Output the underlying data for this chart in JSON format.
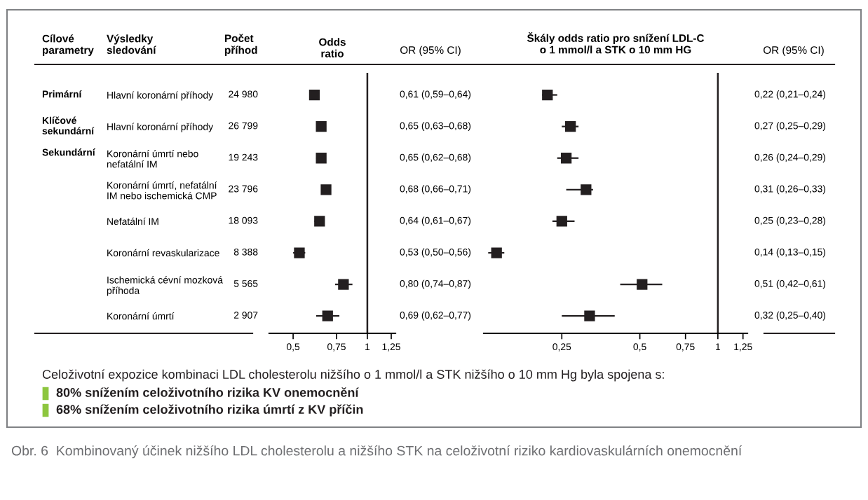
{
  "chart_data": [
    {
      "type": "scatter",
      "orientation": "horizontal",
      "title": "Odds\nratio",
      "log": "x",
      "marker": "square",
      "grid": false,
      "categories": [
        "Hlavní koronární příhody",
        "Hlavní koronární příhody",
        "Koronární úmrtí nebo\nnefatální IM",
        "Koronární úmrtí, nefatální\nIM nebo ischemická CMP",
        "Nefatální IM",
        "Koronární revaskularizace",
        "Ischemická cévní mozková\npříhoda",
        "Koronární úmrtí"
      ],
      "series": [
        {
          "color": "#231f20",
          "values": [
            0.61,
            0.65,
            0.65,
            0.68,
            0.64,
            0.53,
            0.8,
            0.69
          ],
          "errors": [
            [
              0.59,
              0.64
            ],
            [
              0.63,
              0.68
            ],
            [
              0.62,
              0.68
            ],
            [
              0.66,
              0.71
            ],
            [
              0.61,
              0.67
            ],
            [
              0.5,
              0.56
            ],
            [
              0.74,
              0.87
            ],
            [
              0.62,
              0.77
            ]
          ],
          "value_labels": [
            "0,61 (0,59–0,64)",
            "0,65 (0,63–0,68)",
            "0,65 (0,62–0,68)",
            "0,68 (0,66–0,71)",
            "0,64 (0,61–0,67)",
            "0,53 (0,50–0,56)",
            "0,80 (0,74–0,87)",
            "0,69 (0,62–0,77)"
          ]
        }
      ],
      "xlim": [
        0.4,
        1.3
      ],
      "xticks": [
        {
          "value": 0.5,
          "label": "0,5"
        },
        {
          "value": 0.75,
          "label": "0,75"
        },
        1,
        {
          "value": 1.25,
          "label": "1,25"
        }
      ],
      "ref_lines": [
        {
          "axis": "x",
          "value": 1,
          "color": "#231f20"
        }
      ],
      "annotations": [
        "Cílové\nparametry",
        "Výsledky\nsledování",
        "Počet\npříhod",
        "OR (95% CI)",
        "24 980",
        "26 799",
        "19 243",
        "23 796",
        "18 093",
        "8 388",
        "5 565",
        "2 907",
        "Primární",
        "Klíčové\nsekundární",
        "Sekundární",
        "Celoživotní expozice kombinaci LDL cholesterolu nižšího o 1 mmol/l a STK nižšího o 10 mm Hg byla spojena s:",
        "80% snížením celoživotního rizika KV onemocnění",
        "68% snížením celoživotního rizika úmrtí z KV příčin",
        "Obr. 6  Kombinovaný účinek nižšího LDL cholesterolu a nižšího STK na celoživotní riziko kardiovaskulárních onemocnění"
      ]
    },
    {
      "type": "scatter",
      "orientation": "horizontal",
      "title": "Škály odds ratio pro snížení LDL-C\no 1 mmol/l a STK o 10 mm HG",
      "log": "x",
      "marker": "square",
      "grid": false,
      "tick_labels": "x",
      "categories": [
        null,
        null,
        null,
        null,
        null,
        null,
        null,
        null
      ],
      "series": [
        {
          "color": "#231f20",
          "values": [
            0.22,
            0.27,
            0.26,
            0.31,
            0.25,
            0.14,
            0.51,
            0.32
          ],
          "errors": [
            [
              0.21,
              0.24
            ],
            [
              0.25,
              0.29
            ],
            [
              0.24,
              0.29
            ],
            [
              0.26,
              0.33
            ],
            [
              0.23,
              0.28
            ],
            [
              0.13,
              0.15
            ],
            [
              0.42,
              0.61
            ],
            [
              0.25,
              0.4
            ]
          ],
          "value_labels": [
            "0,22 (0,21–0,24)",
            "0,27 (0,25–0,29)",
            "0,26 (0,24–0,29)",
            "0,31 (0,26–0,33)",
            "0,25 (0,23–0,28)",
            "0,14 (0,13–0,15)",
            "0,51 (0,42–0,61)",
            "0,32 (0,25–0,40)"
          ]
        }
      ],
      "xlim": [
        0.125,
        1.3
      ],
      "xticks": [
        {
          "value": 0.25,
          "label": "0,25"
        },
        {
          "value": 0.5,
          "label": "0,5"
        },
        {
          "value": 0.75,
          "label": "0,75"
        },
        1,
        {
          "value": 1.25,
          "label": "1,25"
        }
      ],
      "ref_lines": [
        {
          "axis": "x",
          "value": 1,
          "color": "#231f20"
        }
      ],
      "annotations": [
        "OR (95% CI)"
      ]
    }
  ]
}
